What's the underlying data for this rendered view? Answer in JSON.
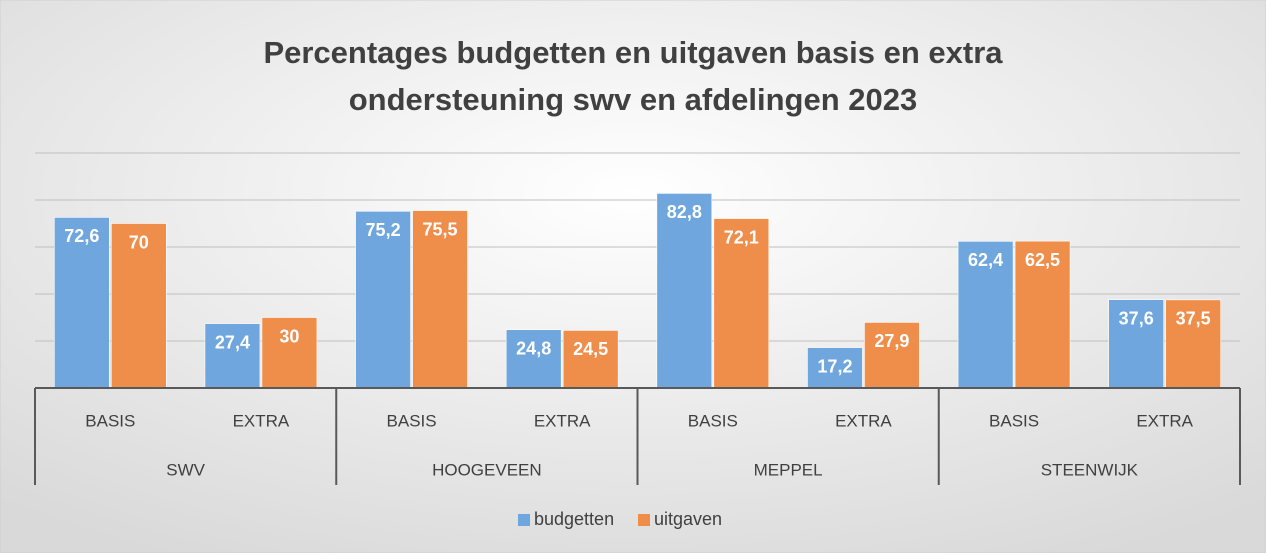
{
  "chart_data": {
    "type": "bar",
    "title": [
      "Percentages budgetten en uitgaven basis en extra",
      "ondersteuning swv en afdelingen 2023"
    ],
    "categories": [
      "BASIS",
      "EXTRA",
      "BASIS",
      "EXTRA",
      "BASIS",
      "EXTRA",
      "BASIS",
      "EXTRA"
    ],
    "groups": [
      "SWV",
      "HOOGEVEEN",
      "MEPPEL",
      "STEENWIJK"
    ],
    "series": [
      {
        "name": "budgetten",
        "color": "#6ea6dd",
        "values": [
          72.6,
          27.4,
          75.2,
          24.8,
          82.8,
          17.2,
          62.4,
          37.6
        ],
        "value_labels": [
          "72,6",
          "27,4",
          "75,2",
          "24,8",
          "82,8",
          "17,2",
          "62,4",
          "37,6"
        ]
      },
      {
        "name": "uitgaven",
        "color": "#ef8d4b",
        "values": [
          70,
          30,
          75.5,
          24.5,
          72.1,
          27.9,
          62.5,
          37.5
        ],
        "value_labels": [
          "70",
          "30",
          "75,5",
          "24,5",
          "72,1",
          "27,9",
          "62,5",
          "37,5"
        ]
      }
    ],
    "ylim": [
      0,
      100
    ],
    "yticks": [
      0,
      20,
      40,
      60,
      80,
      100
    ],
    "grid": true,
    "legend": "bottom"
  }
}
